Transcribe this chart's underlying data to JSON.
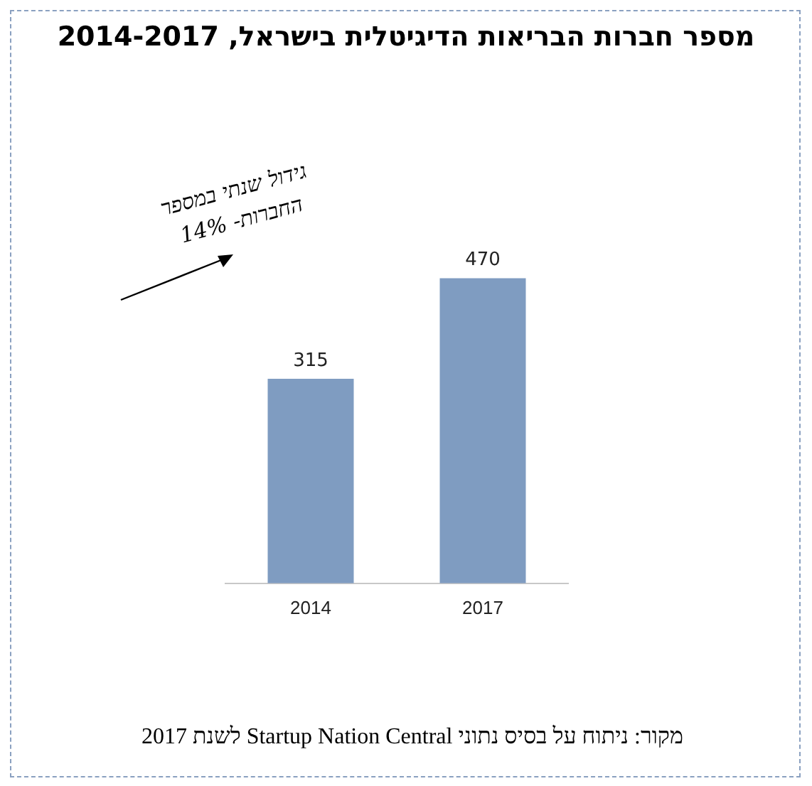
{
  "chart_data": {
    "type": "bar",
    "title": "מספר חברות הבריאות הדיגיטלית בישראל, 2014-2017",
    "categories": [
      "2014",
      "2017"
    ],
    "values": [
      315,
      470
    ],
    "color": "#7f9cc1",
    "data_labels": true,
    "grid": false,
    "legend": false,
    "annotations": [
      "גידול שנתי במספר החברות- 14%",
      "מקור: ניתוח על בסיס נתוני Startup Nation Central לשנת 2017"
    ]
  }
}
